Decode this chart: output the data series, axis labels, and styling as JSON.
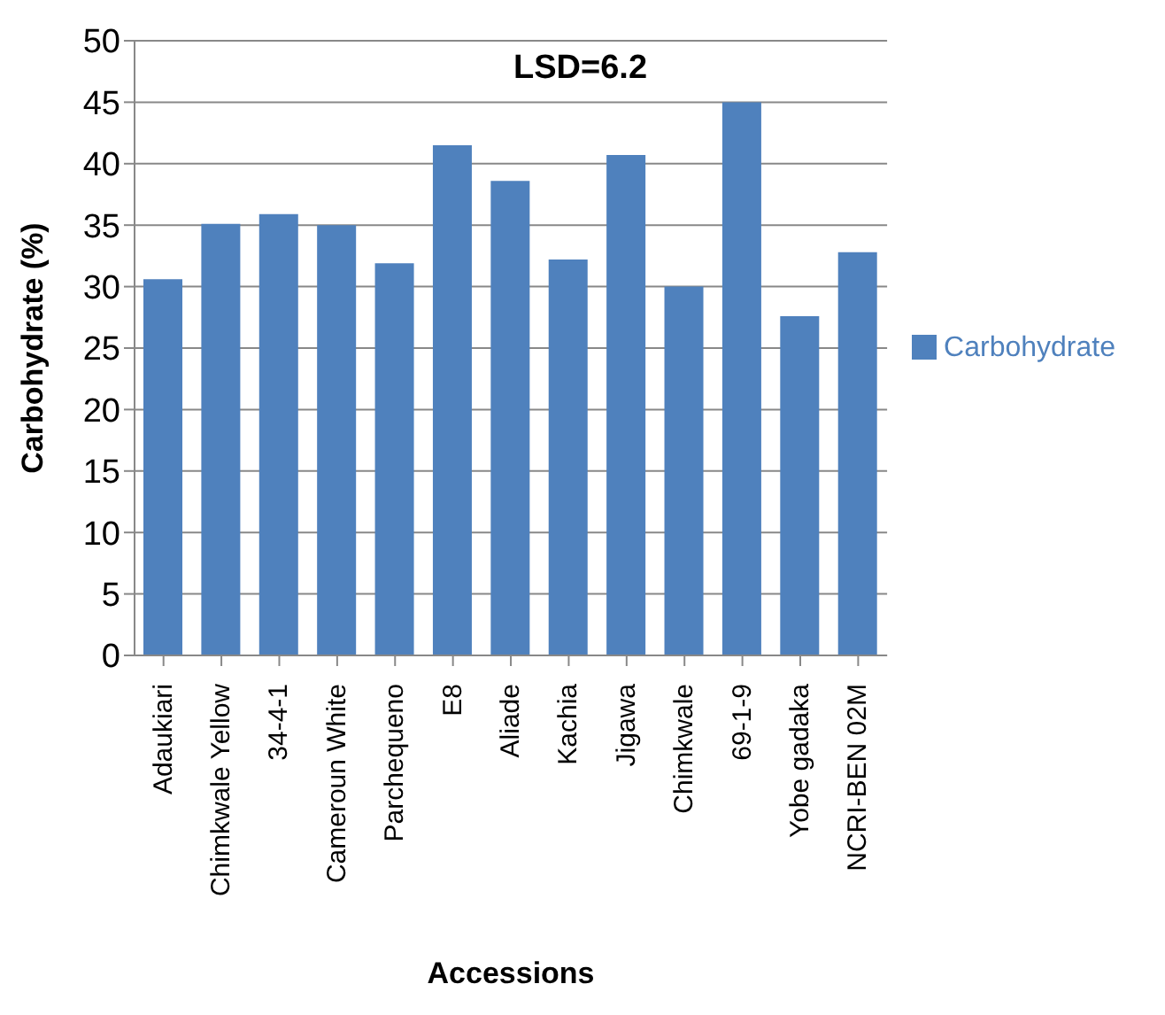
{
  "chart_data": {
    "type": "bar",
    "ylabel": "Carbohydrate (%)",
    "xlabel": "Accessions",
    "categories": [
      "Adaukiari",
      "Chimkwale Yellow",
      "34-4-1",
      "Cameroun White",
      "Parchequeno",
      "E8",
      "Aliade",
      "Kachia",
      "Jigawa",
      "Chimkwale",
      "69-1-9",
      "Yobe gadaka",
      "NCRI-BEN 02M"
    ],
    "series": [
      {
        "name": "Carbohydrate",
        "color": "#4f81bd",
        "values": [
          30.6,
          35.1,
          35.9,
          35.0,
          31.9,
          41.5,
          38.6,
          32.2,
          40.7,
          30.0,
          45.0,
          27.6,
          32.8
        ]
      }
    ],
    "ylim": [
      0,
      50
    ],
    "yticks": [
      0,
      5,
      10,
      15,
      20,
      25,
      30,
      35,
      40,
      45,
      50
    ],
    "grid": "y",
    "legend": "right",
    "annotations": [
      "LSD=6.2"
    ]
  }
}
